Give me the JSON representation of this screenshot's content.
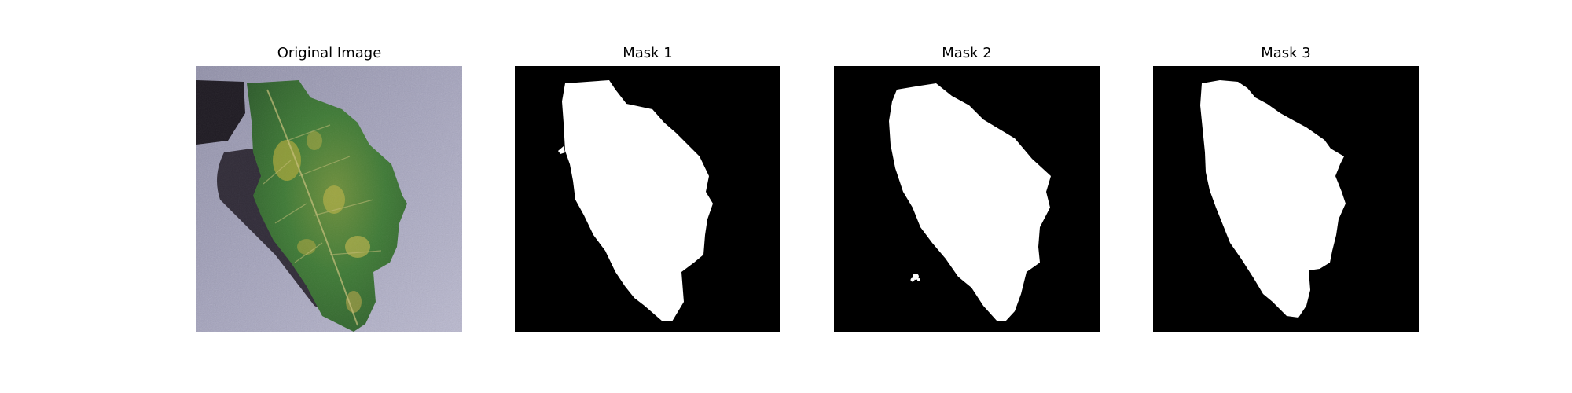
{
  "panels": [
    {
      "title": "Original Image",
      "kind": "photo"
    },
    {
      "title": "Mask 1",
      "kind": "mask"
    },
    {
      "title": "Mask 2",
      "kind": "mask"
    },
    {
      "title": "Mask 3",
      "kind": "mask"
    }
  ],
  "colors": {
    "background": "#ffffff",
    "mask_fg": "#ffffff",
    "mask_bg": "#000000",
    "photo_surface": "#9b9bb3",
    "leaf_green": "#3f7a36",
    "leaf_yellow": "#a7a53a"
  }
}
